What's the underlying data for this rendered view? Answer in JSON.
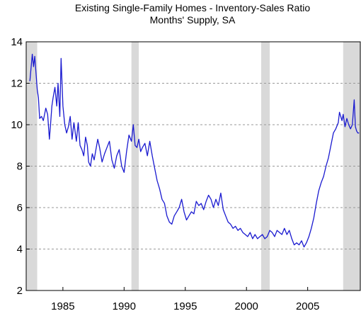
{
  "chart_data": {
    "type": "line",
    "title": "Existing Single-Family Homes - Inventory-Sales Ratio",
    "subtitle": "Months' Supply, SA",
    "xlabel": "",
    "ylabel": "",
    "xlim": [
      1982.0,
      2009.3
    ],
    "ylim": [
      2,
      14
    ],
    "yticks": [
      2,
      4,
      6,
      8,
      10,
      12,
      14
    ],
    "xticks": [
      1985,
      1990,
      1995,
      2000,
      2005
    ],
    "grid": "horizontal-dashed",
    "legend": "none",
    "colors": {
      "line": "#1a1ad0",
      "recession": "#d9d9d9",
      "grid": "#999999"
    },
    "recessions": [
      [
        1982.0,
        1982.9
      ],
      [
        1990.6,
        1991.2
      ],
      [
        2001.2,
        2001.9
      ],
      [
        2007.9,
        2009.3
      ]
    ],
    "series": [
      {
        "x": [
          1982.3,
          1982.5,
          1982.6,
          1982.7,
          1982.9,
          1983.0,
          1983.1,
          1983.25,
          1983.4,
          1983.6,
          1983.75,
          1983.9,
          1984.0,
          1984.1,
          1984.2,
          1984.35,
          1984.5,
          1984.6,
          1984.75,
          1984.85,
          1985.0,
          1985.15,
          1985.3,
          1985.45,
          1985.6,
          1985.75,
          1985.9,
          1986.1,
          1986.25,
          1986.4,
          1986.55,
          1986.7,
          1986.85,
          1987.0,
          1987.1,
          1987.25,
          1987.4,
          1987.55,
          1987.7,
          1987.85,
          1988.0,
          1988.2,
          1988.4,
          1988.6,
          1988.8,
          1989.0,
          1989.2,
          1989.4,
          1989.6,
          1989.8,
          1990.0,
          1990.2,
          1990.4,
          1990.6,
          1990.75,
          1990.9,
          1991.05,
          1991.2,
          1991.35,
          1991.5,
          1991.7,
          1991.9,
          1992.1,
          1992.3,
          1992.5,
          1992.7,
          1992.9,
          1993.1,
          1993.3,
          1993.5,
          1993.7,
          1993.9,
          1994.1,
          1994.3,
          1994.5,
          1994.7,
          1994.9,
          1995.1,
          1995.3,
          1995.5,
          1995.7,
          1995.9,
          1996.1,
          1996.3,
          1996.5,
          1996.7,
          1996.9,
          1997.1,
          1997.3,
          1997.5,
          1997.7,
          1997.9,
          1998.1,
          1998.3,
          1998.5,
          1998.7,
          1998.9,
          1999.1,
          1999.3,
          1999.5,
          1999.7,
          1999.9,
          2000.1,
          2000.3,
          2000.5,
          2000.7,
          2000.9,
          2001.1,
          2001.3,
          2001.5,
          2001.7,
          2001.9,
          2002.1,
          2002.3,
          2002.5,
          2002.7,
          2002.9,
          2003.1,
          2003.3,
          2003.5,
          2003.7,
          2003.9,
          2004.1,
          2004.3,
          2004.5,
          2004.7,
          2004.9,
          2005.1,
          2005.3,
          2005.5,
          2005.7,
          2005.9,
          2006.1,
          2006.3,
          2006.5,
          2006.7,
          2006.9,
          2007.1,
          2007.3,
          2007.5,
          2007.6,
          2007.8,
          2007.9,
          2008.05,
          2008.2,
          2008.35,
          2008.5,
          2008.65,
          2008.8,
          2008.9,
          2009.0,
          2009.1,
          2009.2
        ],
        "y": [
          12.1,
          13.4,
          12.8,
          13.3,
          11.7,
          11.3,
          10.3,
          10.4,
          10.2,
          10.8,
          10.5,
          9.3,
          10.1,
          10.9,
          11.3,
          11.8,
          10.9,
          12.0,
          10.4,
          13.2,
          10.9,
          10.0,
          9.6,
          9.9,
          10.4,
          9.3,
          10.1,
          9.2,
          10.1,
          9.0,
          8.8,
          8.5,
          9.4,
          9.0,
          8.2,
          8.0,
          8.6,
          8.3,
          8.8,
          9.3,
          8.9,
          8.2,
          8.6,
          8.9,
          9.2,
          8.3,
          7.9,
          8.5,
          8.8,
          8.0,
          7.7,
          8.7,
          9.5,
          9.2,
          10.0,
          9.0,
          8.9,
          9.3,
          8.7,
          8.9,
          9.1,
          8.5,
          9.2,
          8.5,
          7.9,
          7.3,
          6.9,
          6.4,
          6.2,
          5.6,
          5.3,
          5.2,
          5.6,
          5.8,
          6.0,
          6.4,
          5.8,
          5.4,
          5.6,
          5.8,
          5.7,
          6.3,
          6.1,
          6.2,
          5.9,
          6.3,
          6.6,
          6.4,
          6.0,
          6.4,
          6.1,
          6.7,
          5.9,
          5.6,
          5.3,
          5.2,
          5.0,
          5.1,
          4.9,
          5.0,
          4.8,
          4.7,
          4.6,
          4.8,
          4.5,
          4.7,
          4.5,
          4.6,
          4.7,
          4.5,
          4.6,
          4.9,
          4.8,
          4.6,
          4.9,
          4.8,
          4.7,
          5.0,
          4.7,
          4.9,
          4.5,
          4.2,
          4.3,
          4.2,
          4.4,
          4.1,
          4.3,
          4.6,
          5.0,
          5.5,
          6.2,
          6.8,
          7.2,
          7.5,
          8.0,
          8.4,
          9.0,
          9.6,
          9.8,
          10.1,
          10.6,
          10.2,
          10.5,
          9.9,
          10.3,
          10.0,
          9.8,
          10.0,
          11.2,
          9.9,
          9.7,
          9.6,
          9.6
        ]
      }
    ]
  }
}
